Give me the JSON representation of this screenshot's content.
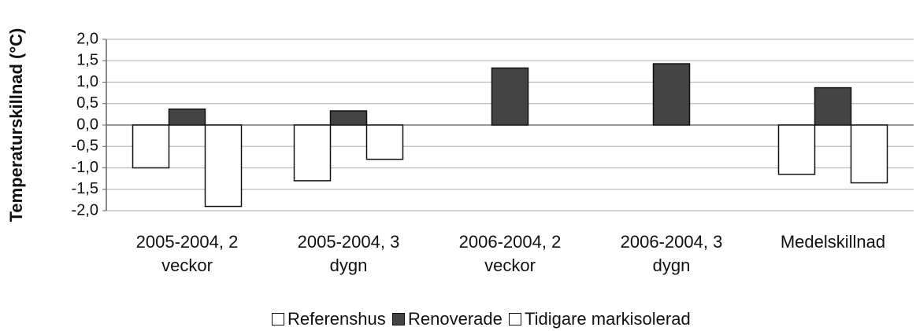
{
  "chart_data": {
    "type": "bar",
    "y_label": "Temperaturskillnad (°C)",
    "categories": [
      "2005-2004, 2 veckor",
      "2005-2004, 3 dygn",
      "2006-2004, 2 veckor",
      "2006-2004, 3 dygn",
      "Medelskillnad"
    ],
    "series": [
      {
        "name": "Referenshus",
        "color": "#ffffff",
        "values": [
          -1.0,
          -1.3,
          null,
          null,
          -1.15
        ]
      },
      {
        "name": "Renoverade",
        "color": "#444444",
        "values": [
          0.37,
          0.33,
          1.33,
          1.43,
          0.87
        ]
      },
      {
        "name": "Tidigare markisolerad",
        "color": "#ffffff",
        "values": [
          -1.9,
          -0.8,
          null,
          null,
          -1.35
        ]
      }
    ],
    "ylim": [
      -2.0,
      2.0
    ],
    "yticks": [
      {
        "value": -2.0,
        "label": "-2,0"
      },
      {
        "value": -1.5,
        "label": "-1,5"
      },
      {
        "value": -1.0,
        "label": "-1,0"
      },
      {
        "value": -0.5,
        "label": "-0,5"
      },
      {
        "value": 0.0,
        "label": "0,0"
      },
      {
        "value": 0.5,
        "label": "0,5"
      },
      {
        "value": 1.0,
        "label": "1,0"
      },
      {
        "value": 1.5,
        "label": "1,5"
      },
      {
        "value": 2.0,
        "label": "2,0"
      }
    ],
    "grid": true
  }
}
